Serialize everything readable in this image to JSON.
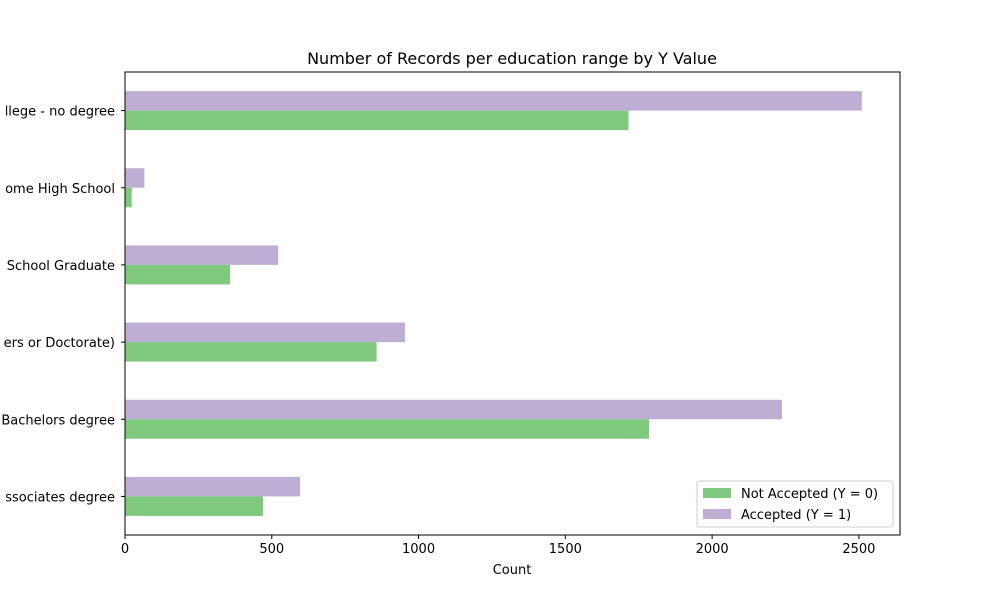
{
  "chart_data": {
    "type": "bar",
    "orientation": "horizontal",
    "title": "Number of Records per education range by Y Value",
    "xlabel": "Count",
    "ylabel": "",
    "categories": [
      "Some college - no degree",
      "Some High School",
      "High School Graduate",
      "Graduate degree (Masters or Doctorate)",
      "Bachelors degree",
      "Associates degree"
    ],
    "category_tick_labels": [
      "llege - no degree",
      "ome High School",
      "School Graduate",
      "ers or Doctorate)",
      "Bachelors degree",
      "ssociates degree"
    ],
    "series": [
      {
        "name": "Not Accepted (Y = 0)",
        "color": "#7fc97f",
        "values": [
          1715,
          23,
          358,
          857,
          1785,
          470
        ]
      },
      {
        "name": "Accepted (Y = 1)",
        "color": "#beaed4",
        "values": [
          2510,
          66,
          522,
          954,
          2238,
          596
        ]
      }
    ],
    "xlim": [
      0,
      2640
    ],
    "xticks": [
      0,
      500,
      1000,
      1500,
      2000,
      2500
    ],
    "xtick_labels": [
      "0",
      "500",
      "1000",
      "1500",
      "2000",
      "2500"
    ],
    "grid": false,
    "legend_position": "lower-right"
  }
}
